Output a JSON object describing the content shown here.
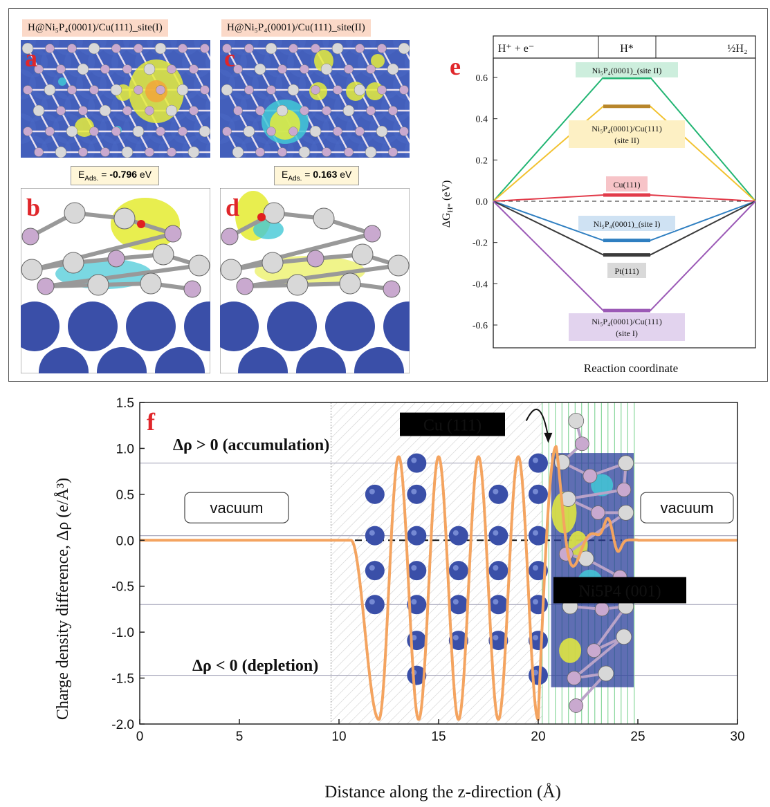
{
  "panel_top": {
    "site1_title": "H@Ni₅P₄(0001)/Cu(111)_site(I)",
    "site2_title": "H@Ni₅P₄(0001)/Cu(111)_site(II)",
    "site1_eads_label": "E",
    "site1_eads_sub": "Ads.",
    "site1_eads_eq": " = ",
    "site1_eads_value": "-0.796",
    "site1_eads_unit": " eV",
    "site2_eads_label": "E",
    "site2_eads_sub": "Ads.",
    "site2_eads_eq": " = ",
    "site2_eads_value": "0.163",
    "site2_eads_unit": " eV",
    "letters": [
      "a",
      "b",
      "c",
      "d",
      "e",
      "f"
    ]
  },
  "colors": {
    "green": "#22b573",
    "gold": "#b8862b",
    "gold_line": "#f2c230",
    "red": "#e23b4a",
    "blue": "#2f7fc1",
    "gray": "#3a3a3a",
    "purple": "#9b59b6",
    "orange": "#f4a460",
    "atom_blue": "#3a4fa8",
    "atom_white": "#d8d8d8",
    "atom_pink": "#c9a9cf"
  },
  "chart_data": [
    {
      "type": "line",
      "panel": "e",
      "header": [
        "H⁺ + e⁻",
        "H*",
        "½H₂"
      ],
      "xlabel": "Reaction coordinate",
      "ylabel": "ΔG",
      "ylabel_sub": "H*",
      "ylabel_unit": " (eV)",
      "ylim": [
        -0.7,
        0.7
      ],
      "yticks": [
        "0.6",
        "0.4",
        "0.2",
        "0.0",
        "-0.2",
        "-0.4",
        "-0.6"
      ],
      "series": [
        {
          "name": "Ni₅P₄(0001)_(site II)",
          "color": "#22b573",
          "label_bg": "#cdeedd",
          "value": 0.6
        },
        {
          "name": "Ni₅P₄(0001)/Cu(111)",
          "name2": "(site II)",
          "color": "#f2c230",
          "bar": "#b8862b",
          "label_bg": "#fdf0c4",
          "value": 0.46
        },
        {
          "name": "Cu(111)",
          "color": "#e23b4a",
          "label_bg": "#f7c4c8",
          "value": 0.03
        },
        {
          "name": "Ni₅P₄(0001)_(site I)",
          "color": "#2f7fc1",
          "label_bg": "#cfe2f3",
          "value": -0.19
        },
        {
          "name": "Pt(111)",
          "color": "#3a3a3a",
          "label_bg": "#d9d9d9",
          "value": -0.26
        },
        {
          "name": "Ni₅P₄(0001)/Cu(111)",
          "name2": "(site I)",
          "color": "#9b59b6",
          "label_bg": "#e2d3ee",
          "value": -0.53
        }
      ]
    },
    {
      "type": "line",
      "panel": "f",
      "xlabel": "Distance along the z-direction (Å)",
      "ylabel": "Charge density difference, Δρ (e/Å³)",
      "xlim": [
        0,
        30
      ],
      "ylim": [
        -2.0,
        1.5
      ],
      "xticks": [
        "0",
        "5",
        "10",
        "15",
        "20",
        "25",
        "30"
      ],
      "yticks": [
        "1.5",
        "1.0",
        "0.5",
        "0.0",
        "-0.5",
        "-1.0",
        "-1.5",
        "-2.0"
      ],
      "annotations": {
        "accumulation": "Δρ > 0 (accumulation)",
        "depletion": "Δρ < 0 (depletion)",
        "vacuum_left": "vacuum",
        "vacuum_right": "vacuum",
        "cu": "Cu (111)",
        "ni": "Ni5P4 (001)"
      },
      "reference_lines": [
        0.84,
        0.05,
        -0.7,
        -1.47
      ],
      "series": [
        {
          "color": "#f4a460",
          "x": [
            0,
            10.5,
            11.0,
            11.5,
            12.0,
            12.7,
            13.4,
            14.0,
            14.8,
            15.4,
            16.0,
            16.8,
            17.4,
            18.0,
            18.9,
            19.5,
            20.0,
            20.4,
            20.9,
            21.4,
            21.8,
            22.2,
            22.6,
            23.0,
            23.5,
            24.0,
            24.5,
            25.0,
            30
          ],
          "y": [
            0.0,
            -0.02,
            -0.4,
            -1.4,
            -1.95,
            0.9,
            -0.6,
            -1.95,
            0.92,
            -0.6,
            -1.95,
            0.92,
            -0.6,
            -1.95,
            0.92,
            -0.6,
            -1.92,
            0.2,
            1.02,
            0.0,
            0.25,
            -0.1,
            0.05,
            0.02,
            0.25,
            -0.1,
            0.02,
            0.0,
            0.0
          ]
        }
      ]
    }
  ]
}
